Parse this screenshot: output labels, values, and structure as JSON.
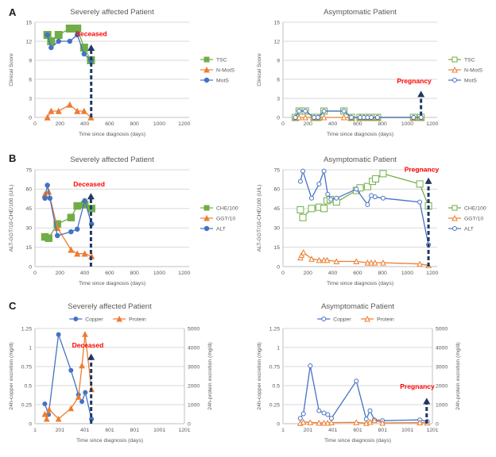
{
  "figure": {
    "panels": [
      {
        "label": "A"
      },
      {
        "label": "B"
      },
      {
        "label": "C"
      }
    ]
  },
  "colors": {
    "green": "#70AD47",
    "orange": "#ED7D31",
    "blue": "#4472C4",
    "annotation_red": "#FF0000",
    "arrow_navy": "#1F3864",
    "gridline": "#D9D9D9",
    "axis_line": "#BFBFBF",
    "text_grey": "#595959"
  },
  "chart_data": [
    {
      "id": "clinical-severe",
      "panel": "A",
      "type": "line",
      "title": "Severely affected Patient",
      "xlabel": "Time since diagnosis (days)",
      "ylabel": "Clinical Score",
      "xlim": [
        0,
        1240
      ],
      "xticks": [
        0,
        200,
        400,
        600,
        800,
        1000,
        1200
      ],
      "ylim": [
        0,
        15
      ],
      "yticks": [
        0,
        3,
        6,
        9,
        12,
        15
      ],
      "grid": "horizontal",
      "legend_position": "right",
      "series": [
        {
          "name": "TSC",
          "color": "#70AD47",
          "marker": "square",
          "marker_size": 9,
          "filled": true,
          "x": [
            100,
            130,
            190,
            280,
            340,
            395,
            450
          ],
          "y": [
            13,
            12,
            13,
            14,
            14,
            11,
            9
          ]
        },
        {
          "name": "N-MotS",
          "color": "#ED7D31",
          "marker": "triangle",
          "marker_size": 6.5,
          "filled": true,
          "x": [
            100,
            130,
            190,
            280,
            340,
            395,
            450
          ],
          "y": [
            0,
            1,
            1,
            2,
            1,
            1,
            0
          ]
        },
        {
          "name": "MotS",
          "color": "#4472C4",
          "marker": "circle",
          "marker_size": 5.5,
          "filled": true,
          "x": [
            100,
            130,
            190,
            280,
            340,
            395,
            450
          ],
          "y": [
            13,
            11,
            12,
            12,
            13,
            10,
            9
          ]
        }
      ],
      "annotation": {
        "text": "Deceased",
        "color": "#FF0000",
        "arrow_color": "#1F3864",
        "arrow_x": 452,
        "arrow_y_from": 0,
        "arrow_y_to": 11.5,
        "text_x": 452,
        "text_y": 12.8
      }
    },
    {
      "id": "clinical-asymptomatic",
      "panel": "A",
      "type": "line",
      "title": "Asymptomatic Patient",
      "xlabel": "Time since diagnosis (days)",
      "ylabel": "Clinical Score",
      "xlim": [
        0,
        1240
      ],
      "xticks": [
        0,
        200,
        400,
        600,
        800,
        1000,
        1200
      ],
      "ylim": [
        0,
        15
      ],
      "yticks": [
        0,
        3,
        6,
        9,
        12,
        15
      ],
      "grid": "horizontal",
      "legend_position": "right",
      "series": [
        {
          "name": "TSC",
          "color": "#70AD47",
          "marker": "square",
          "marker_size": 8,
          "filled": false,
          "x": [
            100,
            130,
            180,
            250,
            280,
            330,
            490,
            550,
            620,
            650,
            680,
            710,
            760,
            1050,
            1110
          ],
          "y": [
            0,
            1,
            1,
            0,
            0,
            1,
            1,
            0,
            0,
            0,
            0,
            0,
            0,
            0,
            0
          ]
        },
        {
          "name": "N-MotS",
          "color": "#ED7D31",
          "marker": "triangle",
          "marker_size": 6,
          "filled": false,
          "x": [
            100,
            130,
            180,
            250,
            280,
            330,
            490,
            550,
            620,
            650,
            680,
            710,
            760,
            1050,
            1110
          ],
          "y": [
            0,
            0,
            0,
            0,
            0,
            0,
            0,
            0,
            0,
            0,
            0,
            0,
            0,
            0,
            0
          ]
        },
        {
          "name": "MotS",
          "color": "#4472C4",
          "marker": "circle",
          "marker_size": 5,
          "filled": false,
          "x": [
            100,
            130,
            180,
            250,
            280,
            330,
            490,
            550,
            620,
            650,
            680,
            710,
            760,
            1050,
            1110
          ],
          "y": [
            0,
            1,
            1,
            0,
            0,
            1,
            1,
            0,
            0,
            0,
            0,
            0,
            0,
            0,
            0
          ]
        }
      ],
      "annotation": {
        "text": "Pregnancy",
        "color": "#FF0000",
        "arrow_color": "#1F3864",
        "arrow_x": 1110,
        "arrow_y_from": 0.3,
        "arrow_y_to": 4.2,
        "text_x": 1055,
        "text_y": 5.4
      }
    },
    {
      "id": "liver-severe",
      "panel": "B",
      "type": "line",
      "title": "Severely affected Patient",
      "xlabel": "Time since diagnosis (days)",
      "ylabel": "ALT-GGT/10-CHE/100 (U/L)",
      "xlim": [
        0,
        1240
      ],
      "xticks": [
        0,
        200,
        400,
        600,
        800,
        1000,
        1200
      ],
      "ylim": [
        0,
        75
      ],
      "yticks": [
        0,
        15,
        30,
        45,
        60,
        75
      ],
      "grid": "horizontal",
      "legend_position": "right",
      "series": [
        {
          "name": "CHE/100",
          "color": "#70AD47",
          "marker": "square",
          "marker_size": 8.5,
          "filled": true,
          "x": [
            80,
            110,
            180,
            290,
            340,
            400,
            455
          ],
          "y": [
            23,
            22,
            33,
            38,
            47,
            48,
            45
          ]
        },
        {
          "name": "GGT/10",
          "color": "#ED7D31",
          "marker": "triangle",
          "marker_size": 6.5,
          "filled": true,
          "x": [
            80,
            110,
            180,
            290,
            340,
            400,
            455
          ],
          "y": [
            56,
            58,
            30,
            13,
            10,
            10,
            8
          ]
        },
        {
          "name": "ALT",
          "color": "#4472C4",
          "marker": "circle",
          "marker_size": 5.5,
          "filled": true,
          "x": [
            80,
            100,
            120,
            180,
            290,
            340,
            400,
            455
          ],
          "y": [
            53,
            63,
            53,
            24,
            27,
            29,
            51,
            33
          ]
        }
      ],
      "annotation": {
        "text": "Deceased",
        "color": "#FF0000",
        "arrow_color": "#1F3864",
        "arrow_x": 450,
        "arrow_y_from": 0,
        "arrow_y_to": 57,
        "text_x": 435,
        "text_y": 62
      }
    },
    {
      "id": "liver-asymptomatic",
      "panel": "B",
      "type": "line",
      "title": "Asymptomatic Patient",
      "xlabel": "Time since diagnosis (days)",
      "ylabel": "ALT-GGT/10-CHE/100 (U/L)",
      "xlim": [
        0,
        1240
      ],
      "xticks": [
        0,
        200,
        400,
        600,
        800,
        1000,
        1200
      ],
      "ylim": [
        0,
        75
      ],
      "yticks": [
        0,
        15,
        30,
        45,
        60,
        75
      ],
      "grid": "horizontal",
      "legend_position": "right",
      "series": [
        {
          "name": "CHE/100",
          "color": "#70AD47",
          "marker": "square",
          "marker_size": 8,
          "filled": false,
          "x": [
            140,
            160,
            230,
            290,
            330,
            355,
            380,
            430,
            590,
            620,
            680,
            720,
            745,
            805,
            1100,
            1170
          ],
          "y": [
            44,
            38,
            45,
            46,
            45,
            51,
            52,
            50,
            59,
            61,
            62,
            66,
            68,
            72,
            64,
            47
          ]
        },
        {
          "name": "GGT/10",
          "color": "#ED7D31",
          "marker": "triangle",
          "marker_size": 6,
          "filled": false,
          "x": [
            140,
            150,
            165,
            230,
            290,
            330,
            355,
            430,
            590,
            680,
            710,
            740,
            805,
            1100,
            1170
          ],
          "y": [
            7,
            9,
            11,
            6,
            5,
            5,
            5,
            4,
            4,
            3,
            3,
            3,
            3,
            2,
            1
          ]
        },
        {
          "name": "ALT",
          "color": "#4472C4",
          "marker": "circle",
          "marker_size": 5,
          "filled": false,
          "x": [
            140,
            160,
            230,
            290,
            330,
            360,
            385,
            430,
            590,
            680,
            710,
            740,
            805,
            1100,
            1170
          ],
          "y": [
            66,
            74,
            53,
            64,
            74,
            56,
            52,
            53,
            60,
            48,
            55,
            54,
            53,
            50,
            17
          ]
        }
      ],
      "annotation": {
        "text": "Pregnancy",
        "color": "#FF0000",
        "arrow_color": "#1F3864",
        "arrow_x": 1170,
        "arrow_y_from": 0,
        "arrow_y_to": 69,
        "text_x": 1115,
        "text_y": 73.5
      }
    },
    {
      "id": "copper-protein-severe",
      "panel": "C",
      "type": "line",
      "title": "Severely affected Patient",
      "xlabel": "Time since diagnosis (days)",
      "ylabel": "24h-copper excretion (mg/d)",
      "ylabel_right": "24h-protein excretion (mg/d)",
      "xlim": [
        1,
        1201
      ],
      "xticks": [
        1,
        201,
        401,
        601,
        801,
        1001,
        1201
      ],
      "ylim": [
        0,
        1.25
      ],
      "yticks": [
        0,
        0.25,
        0.5,
        0.75,
        1,
        1.25
      ],
      "y2lim": [
        0,
        5000
      ],
      "y2ticks": [
        0,
        1000,
        2000,
        3000,
        4000,
        5000
      ],
      "grid": "horizontal",
      "legend_position": "top",
      "series": [
        {
          "name": "Copper",
          "color": "#4472C4",
          "marker": "circle",
          "marker_size": 5,
          "filled": true,
          "x": [
            80,
            110,
            190,
            290,
            350,
            378,
            405,
            455
          ],
          "y": [
            0.26,
            0.12,
            1.17,
            0.7,
            0.38,
            0.29,
            0.41,
            0.06
          ]
        },
        {
          "name": "Protein",
          "color": "#ED7D31",
          "marker": "triangle",
          "marker_size": 6,
          "filled": true,
          "yaxis": "y2",
          "x": [
            80,
            95,
            115,
            190,
            290,
            350,
            378,
            403,
            455
          ],
          "y": [
            500,
            250,
            750,
            250,
            800,
            1400,
            3050,
            4700,
            1800
          ]
        }
      ],
      "annotation": {
        "text": "Deceased",
        "color": "#FF0000",
        "arrow_color": "#1F3864",
        "arrow_x": 452,
        "arrow_y_from": 0,
        "arrow_y_to": 0.92,
        "text_x": 425,
        "text_y": 1.0
      }
    },
    {
      "id": "copper-protein-asymptomatic",
      "panel": "C",
      "type": "line",
      "title": "Asymptomatic Patient",
      "xlabel": "Time since diagnosis (days)",
      "ylabel": "24h-copper excretion (mg/d)",
      "ylabel_right": "24h-protein excretion (mg/d)",
      "xlim": [
        1,
        1201
      ],
      "xticks": [
        1,
        201,
        401,
        601,
        801,
        1001,
        1201
      ],
      "ylim": [
        0,
        1.25
      ],
      "yticks": [
        0,
        0.25,
        0.5,
        0.75,
        1,
        1.25
      ],
      "y2lim": [
        0,
        5000
      ],
      "y2ticks": [
        0,
        1000,
        2000,
        3000,
        4000,
        5000
      ],
      "grid": "horizontal",
      "legend_position": "top",
      "series": [
        {
          "name": "Copper",
          "color": "#4472C4",
          "marker": "circle",
          "marker_size": 5,
          "filled": false,
          "x": [
            140,
            165,
            220,
            290,
            330,
            360,
            390,
            590,
            670,
            700,
            735,
            800,
            1100,
            1160
          ],
          "y": [
            0.07,
            0.13,
            0.76,
            0.17,
            0.14,
            0.12,
            0.07,
            0.56,
            0.06,
            0.17,
            0.05,
            0.04,
            0.05,
            0.03
          ]
        },
        {
          "name": "Protein",
          "color": "#ED7D31",
          "marker": "triangle",
          "marker_size": 6,
          "filled": false,
          "yaxis": "y2",
          "x": [
            140,
            165,
            220,
            290,
            330,
            360,
            390,
            590,
            670,
            700,
            735,
            800,
            1100,
            1160
          ],
          "y": [
            30,
            90,
            70,
            40,
            40,
            40,
            60,
            70,
            30,
            90,
            180,
            40,
            60,
            50
          ]
        }
      ],
      "annotation": {
        "text": "Pregnancy",
        "color": "#FF0000",
        "arrow_color": "#1F3864",
        "arrow_x": 1155,
        "arrow_y_from": 0,
        "arrow_y_to": 0.34,
        "text_x": 1080,
        "text_y": 0.46
      }
    }
  ]
}
